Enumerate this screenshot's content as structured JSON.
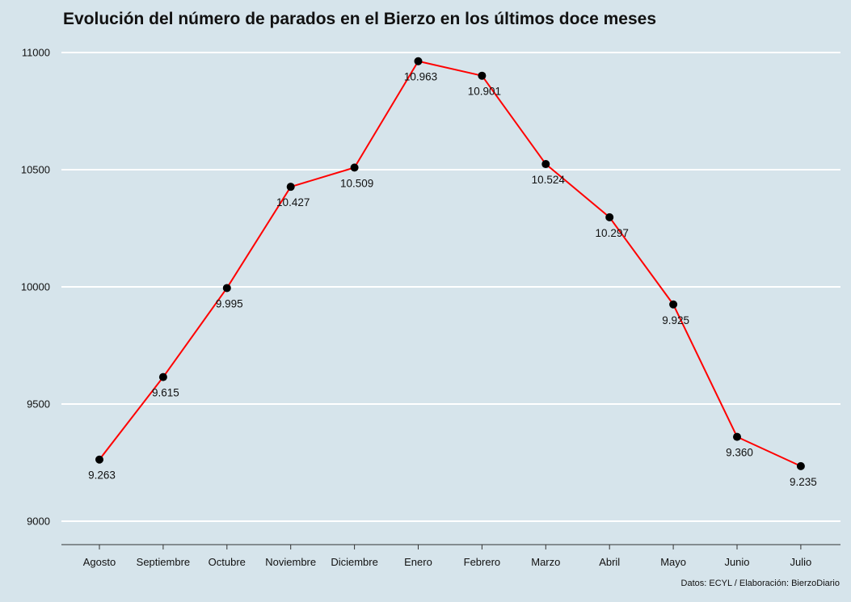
{
  "chart_data": {
    "type": "line",
    "title": "Evolución del número de parados en el Bierzo en los últimos doce meses",
    "source": "Datos: ECYL / Elaboración: BierzoDiario",
    "categories": [
      "Agosto",
      "Septiembre",
      "Octubre",
      "Noviembre",
      "Diciembre",
      "Enero",
      "Febrero",
      "Marzo",
      "Abril",
      "Mayo",
      "Junio",
      "Julio"
    ],
    "values": [
      9263,
      9615,
      9995,
      10427,
      10509,
      10963,
      10901,
      10524,
      10297,
      9925,
      9360,
      9235
    ],
    "data_labels": [
      "9.263",
      "9.615",
      "9.995",
      "10.427",
      "10.509",
      "10.963",
      "10.901",
      "10.524",
      "10.297",
      "9.925",
      "9.360",
      "9.235"
    ],
    "yticks": [
      9000,
      9500,
      10000,
      10500,
      11000
    ],
    "ylim": [
      9000,
      11000
    ],
    "xlabel": "",
    "ylabel": "",
    "grid": "horizontal",
    "line_color": "#ff0000",
    "marker_color": "#000000",
    "grid_color": "#ffffff",
    "background": "#d6e4eb"
  }
}
